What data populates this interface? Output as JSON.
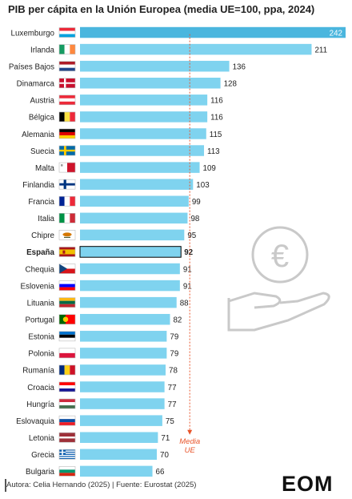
{
  "title": "PIB per cápita en la Unión Europea (media UE=100, ppa, 2024)",
  "colors": {
    "bar": "#7fd3ef",
    "bar_top": "#4ab6de",
    "highlight_outline": "#000000",
    "avg_line": "#e8542a",
    "footer_bar": "#555555",
    "logo_green": "#2e7d32"
  },
  "chart_data": {
    "type": "bar",
    "orientation": "horizontal",
    "categories": [
      "Luxemburgo",
      "Irlanda",
      "Países Bajos",
      "Dinamarca",
      "Austria",
      "Bélgica",
      "Alemania",
      "Suecia",
      "Malta",
      "Finlandia",
      "Francia",
      "Italia",
      "Chipre",
      "España",
      "Chequia",
      "Eslovenia",
      "Lituania",
      "Portugal",
      "Estonia",
      "Polonia",
      "Rumanía",
      "Croacia",
      "Hungría",
      "Eslovaquia",
      "Letonia",
      "Grecia",
      "Bulgaria"
    ],
    "values": [
      242,
      211,
      136,
      128,
      116,
      116,
      115,
      113,
      109,
      103,
      99,
      98,
      95,
      92,
      91,
      91,
      88,
      82,
      79,
      79,
      78,
      77,
      77,
      75,
      71,
      70,
      66
    ],
    "highlight": "España",
    "reference_line": {
      "value": 100,
      "label_line1": "Media",
      "label_line2": "UE"
    },
    "xlim": [
      0,
      242
    ],
    "flags": [
      "flag-luxembourg",
      "flag-ireland",
      "flag-netherlands",
      "flag-denmark",
      "flag-austria",
      "flag-belgium",
      "flag-germany",
      "flag-sweden",
      "flag-malta",
      "flag-finland",
      "flag-france",
      "flag-italy",
      "flag-cyprus",
      "flag-spain",
      "flag-czechia",
      "flag-slovenia",
      "flag-lithuania",
      "flag-portugal",
      "flag-estonia",
      "flag-poland",
      "flag-romania",
      "flag-croatia",
      "flag-hungary",
      "flag-slovakia",
      "flag-latvia",
      "flag-greece",
      "flag-bulgaria"
    ]
  },
  "illustration": "euro-hand-icon",
  "footer": {
    "text": "Autora: Celia Hernando (2025) | Fuente: Eurostat (2025)"
  },
  "logo": {
    "text": "EOM",
    "icon": "eom-logo"
  }
}
